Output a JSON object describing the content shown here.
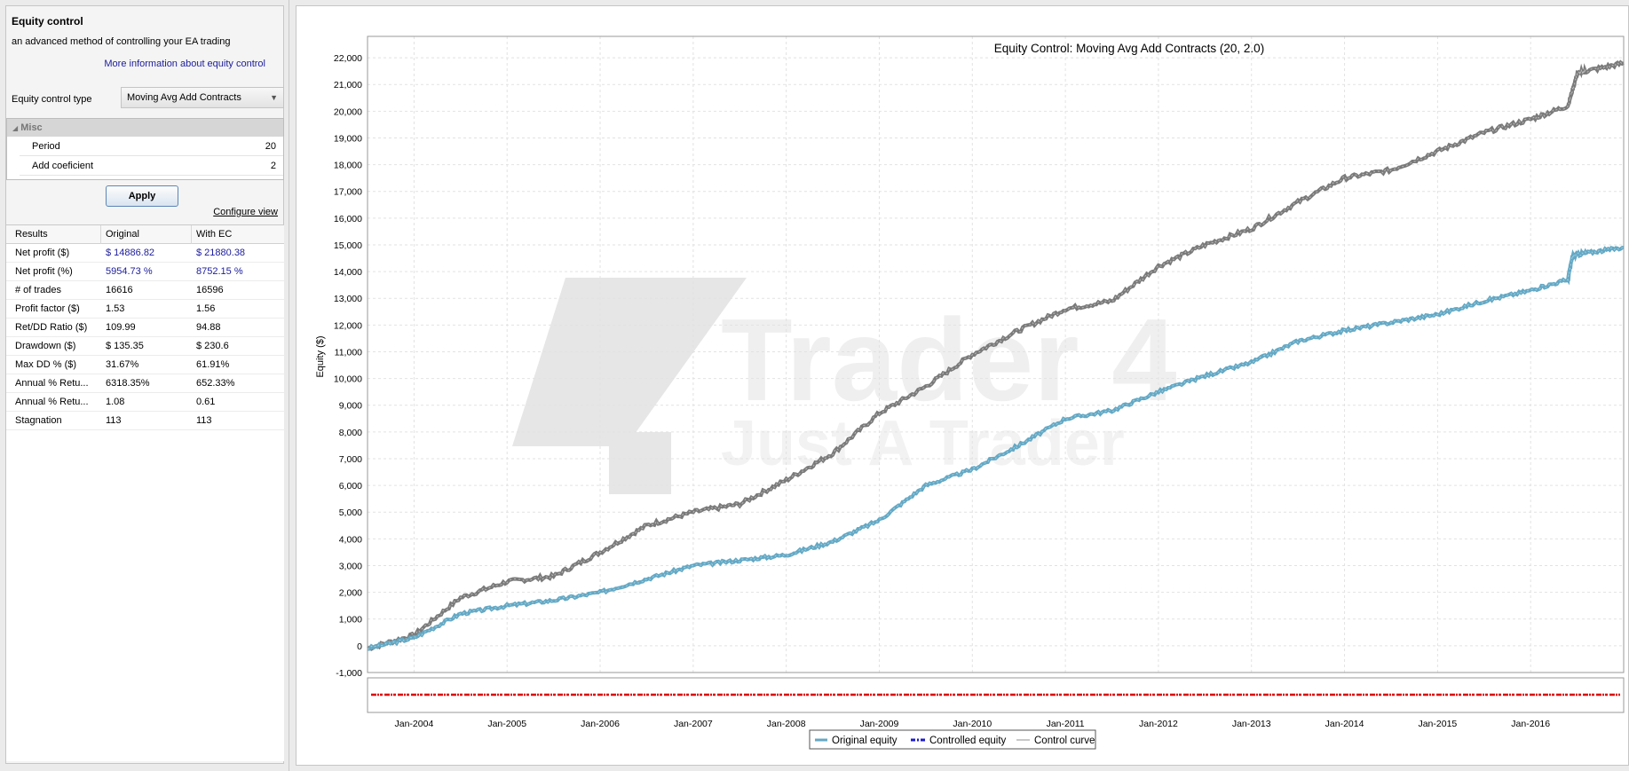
{
  "panel": {
    "title": "Equity control",
    "subtitle": "an advanced method of controlling your EA trading",
    "more_info": "More information about equity control",
    "ec_type_label": "Equity control type",
    "ec_type_value": "Moving Avg Add Contracts",
    "misc_header": "Misc",
    "params": [
      {
        "name": "Period",
        "value": "20"
      },
      {
        "name": "Add coeficient",
        "value": "2"
      }
    ],
    "apply": "Apply",
    "configure_view": "Configure view"
  },
  "results": {
    "headers": [
      "Results",
      "Original",
      "With EC"
    ],
    "rows": [
      {
        "label": "Net profit ($)",
        "original": "$ 14886.82",
        "with_ec": "$ 21880.38"
      },
      {
        "label": "Net profit (%)",
        "original": "5954.73 %",
        "with_ec": "8752.15 %"
      },
      {
        "label": "# of trades",
        "original": "16616",
        "with_ec": "16596"
      },
      {
        "label": "Profit factor ($)",
        "original": "1.53",
        "with_ec": "1.56"
      },
      {
        "label": "Ret/DD Ratio ($)",
        "original": "109.99",
        "with_ec": "94.88"
      },
      {
        "label": "Drawdown ($)",
        "original": "$ 135.35",
        "with_ec": "$ 230.6"
      },
      {
        "label": "Max DD % ($)",
        "original": "31.67%",
        "with_ec": "61.91%"
      },
      {
        "label": "Annual % Retu...",
        "original": "6318.35%",
        "with_ec": "652.33%"
      },
      {
        "label": "Annual % Retu...",
        "original": "1.08",
        "with_ec": "0.61"
      },
      {
        "label": "Stagnation",
        "original": "113",
        "with_ec": "113"
      }
    ]
  },
  "colors": {
    "original": "#64a8c4",
    "controlled": "#1c1ccc",
    "control_curve": "#909090",
    "with_ec_line": "#7a7a7a",
    "strip": "#dd0000"
  },
  "chart_data": {
    "type": "line",
    "title": "Equity Control: Moving Avg Add Contracts (20, 2.0)",
    "ylabel": "Equity ($)",
    "xlabel": "",
    "ylim": [
      -1000,
      22800
    ],
    "y_ticks": [
      -1000,
      0,
      1000,
      2000,
      3000,
      4000,
      5000,
      6000,
      7000,
      8000,
      9000,
      10000,
      11000,
      12000,
      13000,
      14000,
      15000,
      16000,
      17000,
      18000,
      19000,
      20000,
      21000,
      22000
    ],
    "y_tick_labels": [
      "-1,000",
      "0",
      "1,000",
      "2,000",
      "3,000",
      "4,000",
      "5,000",
      "6,000",
      "7,000",
      "8,000",
      "9,000",
      "10,000",
      "11,000",
      "12,000",
      "13,000",
      "14,000",
      "15,000",
      "16,000",
      "17,000",
      "18,000",
      "19,000",
      "20,000",
      "21,000",
      "22,000"
    ],
    "xlim": [
      2003.5,
      2017.0
    ],
    "x_ticks": [
      2004,
      2005,
      2006,
      2007,
      2008,
      2009,
      2010,
      2011,
      2012,
      2013,
      2014,
      2015,
      2016
    ],
    "x_tick_labels": [
      "Jan-2004",
      "Jan-2005",
      "Jan-2006",
      "Jan-2007",
      "Jan-2008",
      "Jan-2009",
      "Jan-2010",
      "Jan-2011",
      "Jan-2012",
      "Jan-2013",
      "Jan-2014",
      "Jan-2015",
      "Jan-2016"
    ],
    "grid": true,
    "legend_placement": "bottom-center",
    "series": [
      {
        "name": "Original equity",
        "x": [
          2003.5,
          2004.0,
          2004.5,
          2005.0,
          2005.5,
          2006.0,
          2006.5,
          2007.0,
          2007.5,
          2008.0,
          2008.5,
          2009.0,
          2009.5,
          2010.0,
          2010.5,
          2011.0,
          2011.5,
          2012.0,
          2012.5,
          2013.0,
          2013.5,
          2014.0,
          2014.5,
          2015.0,
          2015.5,
          2016.0,
          2016.4,
          2016.45,
          2016.6,
          2017.0
        ],
        "values": [
          -100,
          300,
          1200,
          1500,
          1700,
          2000,
          2500,
          3000,
          3200,
          3400,
          3900,
          4700,
          6000,
          6600,
          7500,
          8500,
          8800,
          9500,
          10100,
          10600,
          11400,
          11800,
          12100,
          12400,
          12900,
          13300,
          13700,
          14600,
          14700,
          14900
        ]
      },
      {
        "name": "Controlled equity",
        "x": [
          2003.5,
          2004.0,
          2004.5,
          2005.0,
          2005.5,
          2006.0,
          2006.5,
          2007.0,
          2007.5,
          2008.0,
          2008.5,
          2009.0,
          2009.5,
          2010.0,
          2010.5,
          2011.0,
          2011.5,
          2012.0,
          2012.5,
          2013.0,
          2013.5,
          2014.0,
          2014.5,
          2015.0,
          2015.5,
          2016.0,
          2016.4,
          2016.5,
          2016.6,
          2017.0
        ],
        "values": [
          -100,
          400,
          1800,
          2400,
          2600,
          3500,
          4500,
          5000,
          5300,
          6200,
          7200,
          8700,
          9700,
          10900,
          11800,
          12600,
          12900,
          14200,
          15000,
          15600,
          16600,
          17500,
          17800,
          18500,
          19200,
          19700,
          20200,
          21400,
          21500,
          21800
        ]
      }
    ]
  }
}
